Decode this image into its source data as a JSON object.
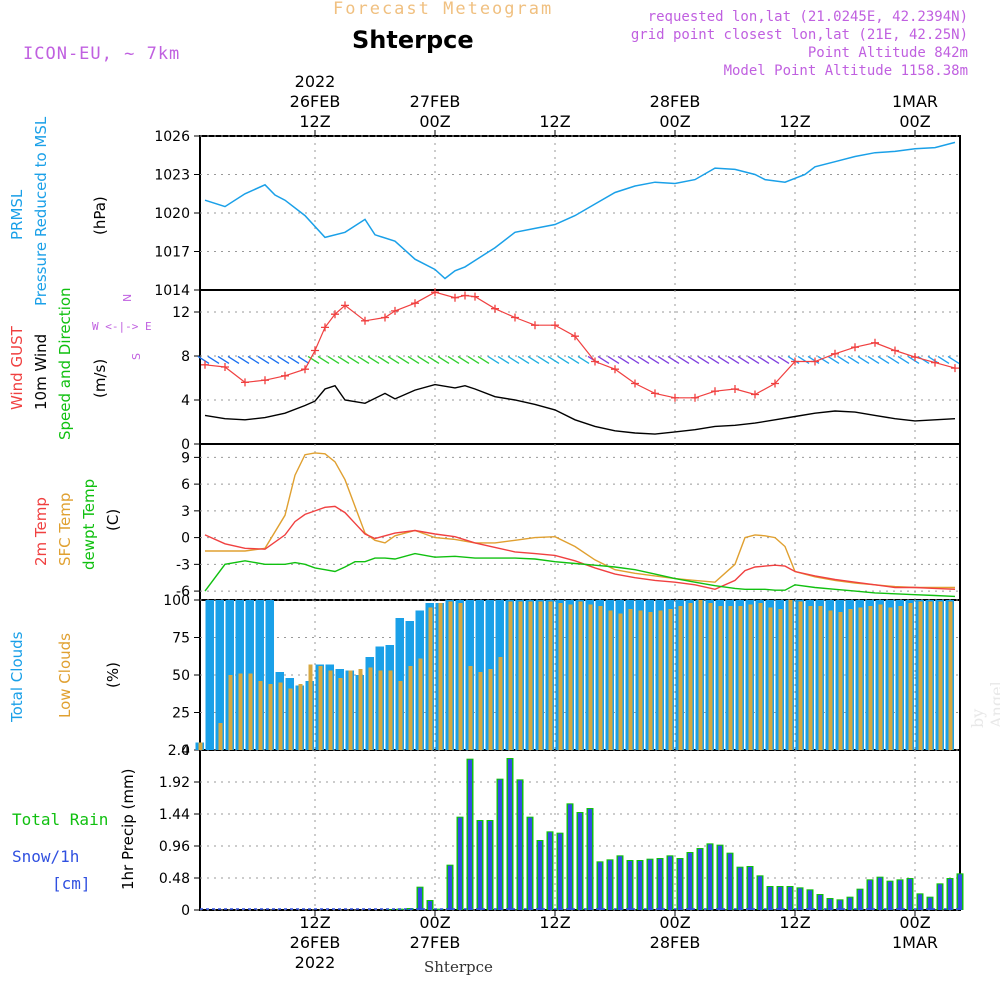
{
  "header": {
    "faded_title": "Forecast Meteogram",
    "station": "Shterpce",
    "model": "ICON-EU, ~ 7km",
    "requested": "requested lon,lat (21.0245E, 42.2394N)",
    "gridpoint": "grid point closest lon,lat (21E, 42.25N)",
    "point_alt": "Point Altitude 842m",
    "model_alt": "Model Point Altitude 1158.38m"
  },
  "time_axis": {
    "top": [
      {
        "label": [
          "2022",
          "26FEB",
          "12Z"
        ]
      },
      {
        "label": [
          "27FEB",
          "00Z"
        ]
      },
      {
        "label": [
          "12Z"
        ]
      },
      {
        "label": [
          "28FEB",
          "00Z"
        ]
      },
      {
        "label": [
          "12Z"
        ]
      },
      {
        "label": [
          "1MAR",
          "00Z"
        ]
      }
    ],
    "bottom": [
      {
        "label": [
          "12Z",
          "26FEB",
          "2022"
        ]
      },
      {
        "label": [
          "00Z",
          "27FEB"
        ]
      },
      {
        "label": [
          "12Z"
        ]
      },
      {
        "label": [
          "00Z",
          "28FEB"
        ]
      },
      {
        "label": [
          "12Z"
        ]
      },
      {
        "label": [
          "00Z",
          "1MAR"
        ]
      }
    ],
    "tick_hours": [
      12,
      24,
      36,
      48,
      60,
      72
    ],
    "hours_range": [
      0.5,
      76.5
    ],
    "footer": "Shterpce"
  },
  "panel_labels": {
    "pressure": [
      "PRMSL",
      "Pressure Reduced to MSL",
      "(hPa)"
    ],
    "wind": [
      "Wind GUST",
      "10m Wind",
      "Speed and Direction",
      "(m/s)"
    ],
    "compass": [
      "N",
      "W <-|-> E",
      "S"
    ],
    "temp": [
      "2m Temp",
      "SFC Temp",
      "dewpt Temp",
      "(C)"
    ],
    "clouds": [
      "Total Clouds",
      "Low Clouds",
      "(%)"
    ],
    "precip": [
      "1hr Precip (mm)"
    ],
    "precip_side": [
      "Total  Rain",
      "Snow/1h",
      "[cm]"
    ]
  },
  "watermark": "by Angel",
  "colors": {
    "pressure": "#1aa0e8",
    "gust": "#f04040",
    "wind": "#000000",
    "temp2m": "#f04040",
    "sfc": "#e0a030",
    "dewpt": "#10c010",
    "total_clouds": "#1aa0e8",
    "low_clouds": "#d8a840",
    "precip_total": "#10c010",
    "precip_snow": "#3050e0",
    "model_label": "#c060e0"
  },
  "chart_data": [
    {
      "type": "line",
      "name": "pressure",
      "ylim": [
        1014,
        1026
      ],
      "yticks": [
        1014,
        1017,
        1020,
        1023,
        1026
      ],
      "x": [
        1,
        3,
        5,
        7,
        8,
        9,
        11,
        13,
        15,
        17,
        18,
        20,
        22,
        24,
        25,
        26,
        27,
        28,
        30,
        32,
        34,
        36,
        38,
        40,
        42,
        44,
        46,
        48,
        50,
        52,
        54,
        56,
        57,
        59,
        61,
        62,
        64,
        66,
        68,
        70,
        72,
        74,
        76
      ],
      "values": [
        1021,
        1020.5,
        1021.5,
        1022.2,
        1021.4,
        1021,
        1019.8,
        1018.1,
        1018.5,
        1019.5,
        1018.3,
        1017.8,
        1016.4,
        1015.6,
        1014.9,
        1015.5,
        1015.8,
        1016.3,
        1017.3,
        1018.5,
        1018.8,
        1019.1,
        1019.8,
        1020.7,
        1021.6,
        1022.1,
        1022.4,
        1022.3,
        1022.6,
        1023.5,
        1023.4,
        1023.0,
        1022.6,
        1022.4,
        1023.0,
        1023.6,
        1024.0,
        1024.4,
        1024.7,
        1024.8,
        1025.0,
        1025.1,
        1025.5
      ]
    },
    {
      "type": "line",
      "name": "wind",
      "ylim": [
        0,
        14
      ],
      "yticks": [
        0,
        4,
        8,
        12
      ],
      "x": [
        1,
        3,
        5,
        7,
        9,
        11,
        12,
        13,
        14,
        15,
        17,
        19,
        20,
        22,
        24,
        26,
        27,
        28,
        30,
        32,
        34,
        36,
        38,
        40,
        42,
        44,
        46,
        48,
        50,
        52,
        54,
        56,
        58,
        60,
        62,
        64,
        66,
        68,
        70,
        72,
        74,
        76
      ],
      "gust": [
        7.2,
        7.0,
        5.6,
        5.8,
        6.2,
        6.8,
        8.5,
        10.6,
        11.8,
        12.6,
        11.2,
        11.5,
        12.1,
        12.8,
        13.8,
        13.3,
        13.5,
        13.4,
        12.3,
        11.5,
        10.8,
        10.8,
        9.8,
        7.5,
        6.8,
        5.5,
        4.6,
        4.2,
        4.2,
        4.8,
        5.0,
        4.5,
        5.5,
        7.5,
        7.5,
        8.2,
        8.8,
        9.2,
        8.5,
        7.9,
        7.4,
        6.9
      ],
      "values": [
        2.6,
        2.3,
        2.2,
        2.4,
        2.8,
        3.5,
        3.9,
        5.0,
        5.3,
        4.0,
        3.7,
        4.6,
        4.1,
        4.9,
        5.4,
        5.1,
        5.3,
        5.0,
        4.3,
        4.0,
        3.6,
        3.1,
        2.2,
        1.6,
        1.2,
        1.0,
        0.9,
        1.1,
        1.3,
        1.6,
        1.7,
        1.9,
        2.2,
        2.5,
        2.8,
        3.0,
        2.9,
        2.6,
        2.3,
        2.1,
        2.2,
        2.3
      ],
      "barb_y": 7.6
    },
    {
      "type": "line",
      "name": "temperature",
      "ylim": [
        -7,
        10.5
      ],
      "yticks": [
        -6,
        -3,
        0,
        3,
        6,
        9
      ],
      "x": [
        1,
        3,
        5,
        7,
        9,
        10,
        11,
        12,
        13,
        14,
        15,
        16,
        17,
        18,
        19,
        20,
        22,
        24,
        26,
        28,
        30,
        32,
        34,
        36,
        38,
        40,
        42,
        44,
        46,
        48,
        50,
        52,
        54,
        55,
        56,
        57,
        58,
        59,
        60,
        62,
        64,
        66,
        68,
        70,
        72,
        74,
        76
      ],
      "t2m": [
        0.3,
        -0.7,
        -1.2,
        -1.3,
        0.3,
        1.8,
        2.6,
        3.0,
        3.4,
        3.5,
        2.8,
        1.6,
        0.4,
        -0.1,
        0.2,
        0.5,
        0.8,
        0.4,
        0.1,
        -0.6,
        -1.1,
        -1.6,
        -1.8,
        -2.0,
        -2.6,
        -3.4,
        -4.1,
        -4.5,
        -4.8,
        -5.0,
        -5.3,
        -5.8,
        -4.8,
        -3.7,
        -3.3,
        -3.2,
        -3.1,
        -3.2,
        -3.8,
        -4.3,
        -4.7,
        -5.0,
        -5.3,
        -5.6,
        -5.6,
        -5.7,
        -5.8
      ],
      "sfc": [
        -1.5,
        -1.5,
        -1.5,
        -1.2,
        2.5,
        7.0,
        9.3,
        9.5,
        9.4,
        8.5,
        6.5,
        3.5,
        0.5,
        -0.3,
        -0.6,
        0.2,
        0.8,
        0.0,
        -0.2,
        -0.6,
        -0.6,
        -0.3,
        0.0,
        0.1,
        -1.0,
        -2.5,
        -3.6,
        -4.0,
        -4.3,
        -4.6,
        -4.8,
        -5.0,
        -3.0,
        0.0,
        0.3,
        0.2,
        0.0,
        -1.0,
        -3.8,
        -4.4,
        -4.8,
        -5.1,
        -5.3,
        -5.5,
        -5.6,
        -5.6,
        -5.6
      ],
      "dewpt": [
        -6.0,
        -3.0,
        -2.6,
        -3.0,
        -3.0,
        -2.8,
        -3.0,
        -3.4,
        -3.6,
        -3.8,
        -3.3,
        -2.7,
        -2.7,
        -2.3,
        -2.3,
        -2.4,
        -1.8,
        -2.2,
        -2.1,
        -2.3,
        -2.3,
        -2.3,
        -2.4,
        -2.7,
        -2.9,
        -3.1,
        -3.3,
        -3.6,
        -4.1,
        -4.6,
        -5.0,
        -5.4,
        -5.7,
        -5.8,
        -5.8,
        -5.8,
        -5.9,
        -5.9,
        -5.3,
        -5.6,
        -5.8,
        -6.0,
        -6.2,
        -6.3,
        -6.4,
        -6.5,
        -6.6
      ]
    },
    {
      "type": "bar",
      "name": "clouds",
      "ylim": [
        0,
        100
      ],
      "yticks": [
        0,
        25,
        50,
        75,
        100
      ],
      "x_start": 1,
      "total": [
        5,
        100,
        100,
        100,
        100,
        100,
        100,
        100,
        52,
        48,
        43,
        46,
        57,
        57,
        54,
        53,
        50,
        62,
        69,
        70,
        88,
        86,
        93,
        98,
        98,
        100,
        100,
        100,
        100,
        100,
        100,
        100,
        100,
        100,
        100,
        100,
        100,
        100,
        100,
        100,
        100,
        100,
        100,
        100,
        100,
        100,
        100,
        100,
        100,
        100,
        100,
        100,
        100,
        100,
        100,
        100,
        100,
        100,
        100,
        100,
        100,
        100,
        100,
        100,
        100,
        100,
        100,
        100,
        100,
        100,
        100,
        100,
        100,
        100,
        100,
        100
      ],
      "low": [
        5,
        0,
        18,
        50,
        51,
        51,
        46,
        44,
        45,
        41,
        44,
        57,
        56,
        53,
        48,
        53,
        54,
        55,
        53,
        53,
        46,
        56,
        61,
        95,
        98,
        99,
        98,
        56,
        52,
        54,
        62,
        99,
        99,
        99,
        99,
        99,
        98,
        97,
        99,
        97,
        96,
        93,
        91,
        94,
        93,
        92,
        93,
        94,
        96,
        98,
        100,
        98,
        96,
        96,
        96,
        97,
        98,
        95,
        94,
        100,
        99,
        96,
        96,
        93,
        92,
        94,
        95,
        96,
        97,
        95,
        96,
        98,
        99,
        99,
        99,
        99
      ]
    },
    {
      "type": "bar",
      "name": "precip",
      "ylim": [
        0,
        2.4
      ],
      "yticks": [
        0,
        0.48,
        0.96,
        1.44,
        1.92,
        2.4
      ],
      "x_start": 1,
      "values": [
        0,
        0,
        0,
        0,
        0,
        0,
        0,
        0,
        0,
        0,
        0,
        0,
        0,
        0,
        0,
        0,
        0,
        0,
        0,
        0.01,
        0.02,
        0.03,
        0.35,
        0.15,
        0.02,
        0.68,
        1.4,
        2.27,
        1.35,
        1.35,
        1.97,
        2.28,
        1.96,
        1.4,
        1.05,
        1.18,
        1.16,
        1.6,
        1.47,
        1.53,
        0.73,
        0.76,
        0.82,
        0.75,
        0.75,
        0.77,
        0.78,
        0.82,
        0.78,
        0.87,
        0.93,
        1.0,
        0.98,
        0.86,
        0.65,
        0.66,
        0.52,
        0.36,
        0.36,
        0.36,
        0.34,
        0.31,
        0.24,
        0.18,
        0.16,
        0.2,
        0.32,
        0.46,
        0.5,
        0.44,
        0.46,
        0.48,
        0.25,
        0.2,
        0.4,
        0.48,
        0.55
      ]
    }
  ]
}
